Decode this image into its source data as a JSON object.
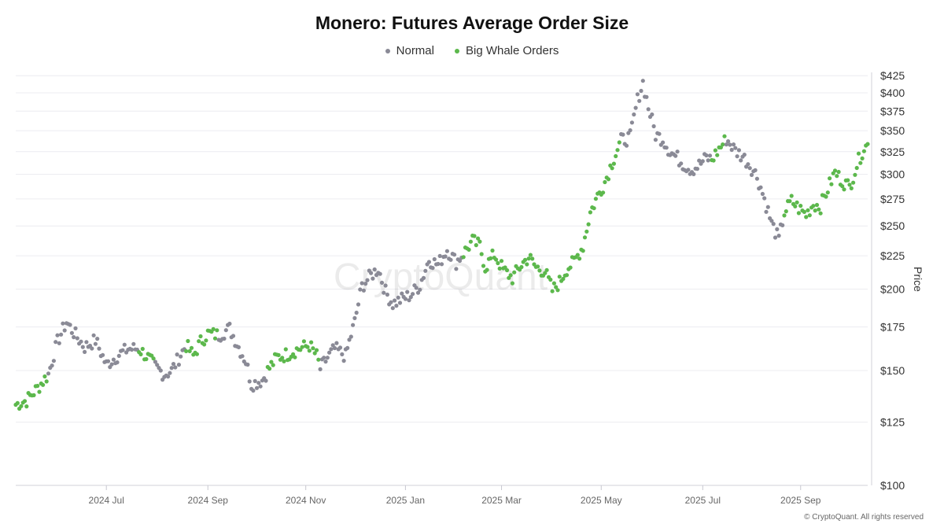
{
  "title": "Monero: Futures Average Order Size",
  "legend": [
    {
      "label": "Normal",
      "color": "#8a8a96"
    },
    {
      "label": "Big Whale Orders",
      "color": "#5cb84c"
    }
  ],
  "watermark": "CryptoQuant",
  "footer": "© CryptoQuant. All rights reserved",
  "chart_data": {
    "type": "scatter",
    "title": "Monero: Futures Average Order Size",
    "ylabel": "Price",
    "yscale": "log",
    "ylim": [
      100,
      430
    ],
    "yticks": [
      100,
      125,
      150,
      175,
      200,
      225,
      250,
      275,
      300,
      325,
      350,
      375,
      400,
      425
    ],
    "ytick_labels": [
      "$100",
      "$125",
      "$150",
      "$175",
      "$200",
      "$225",
      "$250",
      "$275",
      "$300",
      "$325",
      "$350",
      "$375",
      "$400",
      "$425"
    ],
    "xlim_days": [
      0,
      470
    ],
    "xticks": [
      {
        "day": 50,
        "label": "2024 Jul"
      },
      {
        "day": 106,
        "label": "2024 Sep"
      },
      {
        "day": 160,
        "label": "2024 Nov"
      },
      {
        "day": 215,
        "label": "2025 Jan"
      },
      {
        "day": 268,
        "label": "2025 Mar"
      },
      {
        "day": 323,
        "label": "2025 May"
      },
      {
        "day": 379,
        "label": "2025 Jul"
      },
      {
        "day": 433,
        "label": "2025 Sep"
      }
    ],
    "segments": [
      {
        "start_day": 0,
        "value": 133,
        "class": "whale"
      },
      {
        "start_day": 6,
        "value": 135,
        "class": "whale"
      },
      {
        "start_day": 12,
        "value": 141,
        "class": "whale"
      },
      {
        "start_day": 18,
        "value": 148,
        "class": "normal"
      },
      {
        "start_day": 23,
        "value": 166,
        "class": "normal"
      },
      {
        "start_day": 28,
        "value": 178,
        "class": "normal"
      },
      {
        "start_day": 33,
        "value": 170,
        "class": "normal"
      },
      {
        "start_day": 38,
        "value": 163,
        "class": "normal"
      },
      {
        "start_day": 44,
        "value": 167,
        "class": "normal"
      },
      {
        "start_day": 50,
        "value": 153,
        "class": "normal"
      },
      {
        "start_day": 56,
        "value": 158,
        "class": "normal"
      },
      {
        "start_day": 62,
        "value": 162,
        "class": "normal"
      },
      {
        "start_day": 68,
        "value": 162,
        "class": "whale"
      },
      {
        "start_day": 73,
        "value": 157,
        "class": "whale"
      },
      {
        "start_day": 77,
        "value": 152,
        "class": "normal"
      },
      {
        "start_day": 82,
        "value": 148,
        "class": "normal"
      },
      {
        "start_day": 86,
        "value": 150,
        "class": "normal"
      },
      {
        "start_day": 90,
        "value": 157,
        "class": "normal"
      },
      {
        "start_day": 94,
        "value": 164,
        "class": "whale"
      },
      {
        "start_day": 98,
        "value": 158,
        "class": "whale"
      },
      {
        "start_day": 102,
        "value": 166,
        "class": "whale"
      },
      {
        "start_day": 106,
        "value": 171,
        "class": "whale"
      },
      {
        "start_day": 112,
        "value": 170,
        "class": "normal"
      },
      {
        "start_day": 118,
        "value": 174,
        "class": "normal"
      },
      {
        "start_day": 123,
        "value": 163,
        "class": "normal"
      },
      {
        "start_day": 127,
        "value": 155,
        "class": "normal"
      },
      {
        "start_day": 130,
        "value": 143,
        "class": "normal"
      },
      {
        "start_day": 136,
        "value": 145,
        "class": "normal"
      },
      {
        "start_day": 139,
        "value": 150,
        "class": "whale"
      },
      {
        "start_day": 144,
        "value": 157,
        "class": "whale"
      },
      {
        "start_day": 150,
        "value": 159,
        "class": "whale"
      },
      {
        "start_day": 156,
        "value": 162,
        "class": "whale"
      },
      {
        "start_day": 162,
        "value": 164,
        "class": "whale"
      },
      {
        "start_day": 166,
        "value": 158,
        "class": "whale"
      },
      {
        "start_day": 168,
        "value": 151,
        "class": "normal"
      },
      {
        "start_day": 172,
        "value": 157,
        "class": "normal"
      },
      {
        "start_day": 176,
        "value": 162,
        "class": "normal"
      },
      {
        "start_day": 182,
        "value": 158,
        "class": "normal"
      },
      {
        "start_day": 187,
        "value": 178,
        "class": "normal"
      },
      {
        "start_day": 191,
        "value": 202,
        "class": "normal"
      },
      {
        "start_day": 196,
        "value": 210,
        "class": "normal"
      },
      {
        "start_day": 200,
        "value": 215,
        "class": "normal"
      },
      {
        "start_day": 204,
        "value": 198,
        "class": "normal"
      },
      {
        "start_day": 208,
        "value": 190,
        "class": "normal"
      },
      {
        "start_day": 213,
        "value": 193,
        "class": "normal"
      },
      {
        "start_day": 218,
        "value": 196,
        "class": "normal"
      },
      {
        "start_day": 223,
        "value": 203,
        "class": "normal"
      },
      {
        "start_day": 228,
        "value": 222,
        "class": "normal"
      },
      {
        "start_day": 233,
        "value": 218,
        "class": "normal"
      },
      {
        "start_day": 238,
        "value": 230,
        "class": "normal"
      },
      {
        "start_day": 243,
        "value": 220,
        "class": "normal"
      },
      {
        "start_day": 247,
        "value": 227,
        "class": "whale"
      },
      {
        "start_day": 252,
        "value": 237,
        "class": "whale"
      },
      {
        "start_day": 256,
        "value": 233,
        "class": "whale"
      },
      {
        "start_day": 259,
        "value": 216,
        "class": "whale"
      },
      {
        "start_day": 264,
        "value": 226,
        "class": "whale"
      },
      {
        "start_day": 269,
        "value": 214,
        "class": "whale"
      },
      {
        "start_day": 274,
        "value": 208,
        "class": "whale"
      },
      {
        "start_day": 279,
        "value": 218,
        "class": "whale"
      },
      {
        "start_day": 283,
        "value": 224,
        "class": "whale"
      },
      {
        "start_day": 287,
        "value": 216,
        "class": "whale"
      },
      {
        "start_day": 292,
        "value": 213,
        "class": "whale"
      },
      {
        "start_day": 296,
        "value": 199,
        "class": "whale"
      },
      {
        "start_day": 300,
        "value": 205,
        "class": "whale"
      },
      {
        "start_day": 304,
        "value": 215,
        "class": "whale"
      },
      {
        "start_day": 308,
        "value": 220,
        "class": "whale"
      },
      {
        "start_day": 313,
        "value": 233,
        "class": "whale"
      },
      {
        "start_day": 317,
        "value": 262,
        "class": "whale"
      },
      {
        "start_day": 321,
        "value": 278,
        "class": "whale"
      },
      {
        "start_day": 325,
        "value": 292,
        "class": "whale"
      },
      {
        "start_day": 330,
        "value": 318,
        "class": "whale"
      },
      {
        "start_day": 334,
        "value": 338,
        "class": "normal"
      },
      {
        "start_day": 339,
        "value": 342,
        "class": "normal"
      },
      {
        "start_day": 343,
        "value": 390,
        "class": "normal"
      },
      {
        "start_day": 346,
        "value": 415,
        "class": "normal"
      },
      {
        "start_day": 349,
        "value": 380,
        "class": "normal"
      },
      {
        "start_day": 353,
        "value": 345,
        "class": "normal"
      },
      {
        "start_day": 357,
        "value": 340,
        "class": "normal"
      },
      {
        "start_day": 361,
        "value": 325,
        "class": "normal"
      },
      {
        "start_day": 365,
        "value": 318,
        "class": "normal"
      },
      {
        "start_day": 369,
        "value": 310,
        "class": "normal"
      },
      {
        "start_day": 373,
        "value": 305,
        "class": "normal"
      },
      {
        "start_day": 377,
        "value": 310,
        "class": "normal"
      },
      {
        "start_day": 381,
        "value": 318,
        "class": "normal"
      },
      {
        "start_day": 384,
        "value": 316,
        "class": "whale"
      },
      {
        "start_day": 388,
        "value": 328,
        "class": "whale"
      },
      {
        "start_day": 392,
        "value": 340,
        "class": "normal"
      },
      {
        "start_day": 397,
        "value": 326,
        "class": "normal"
      },
      {
        "start_day": 401,
        "value": 320,
        "class": "normal"
      },
      {
        "start_day": 405,
        "value": 310,
        "class": "normal"
      },
      {
        "start_day": 409,
        "value": 298,
        "class": "normal"
      },
      {
        "start_day": 413,
        "value": 275,
        "class": "normal"
      },
      {
        "start_day": 417,
        "value": 252,
        "class": "normal"
      },
      {
        "start_day": 421,
        "value": 238,
        "class": "normal"
      },
      {
        "start_day": 424,
        "value": 262,
        "class": "whale"
      },
      {
        "start_day": 428,
        "value": 273,
        "class": "whale"
      },
      {
        "start_day": 432,
        "value": 266,
        "class": "whale"
      },
      {
        "start_day": 436,
        "value": 260,
        "class": "whale"
      },
      {
        "start_day": 440,
        "value": 270,
        "class": "whale"
      },
      {
        "start_day": 444,
        "value": 268,
        "class": "whale"
      },
      {
        "start_day": 448,
        "value": 285,
        "class": "whale"
      },
      {
        "start_day": 452,
        "value": 302,
        "class": "whale"
      },
      {
        "start_day": 456,
        "value": 293,
        "class": "whale"
      },
      {
        "start_day": 460,
        "value": 287,
        "class": "whale"
      },
      {
        "start_day": 464,
        "value": 310,
        "class": "whale"
      },
      {
        "start_day": 468,
        "value": 330,
        "class": "whale"
      },
      {
        "start_day": 470,
        "value": 332,
        "class": "whale"
      }
    ]
  }
}
